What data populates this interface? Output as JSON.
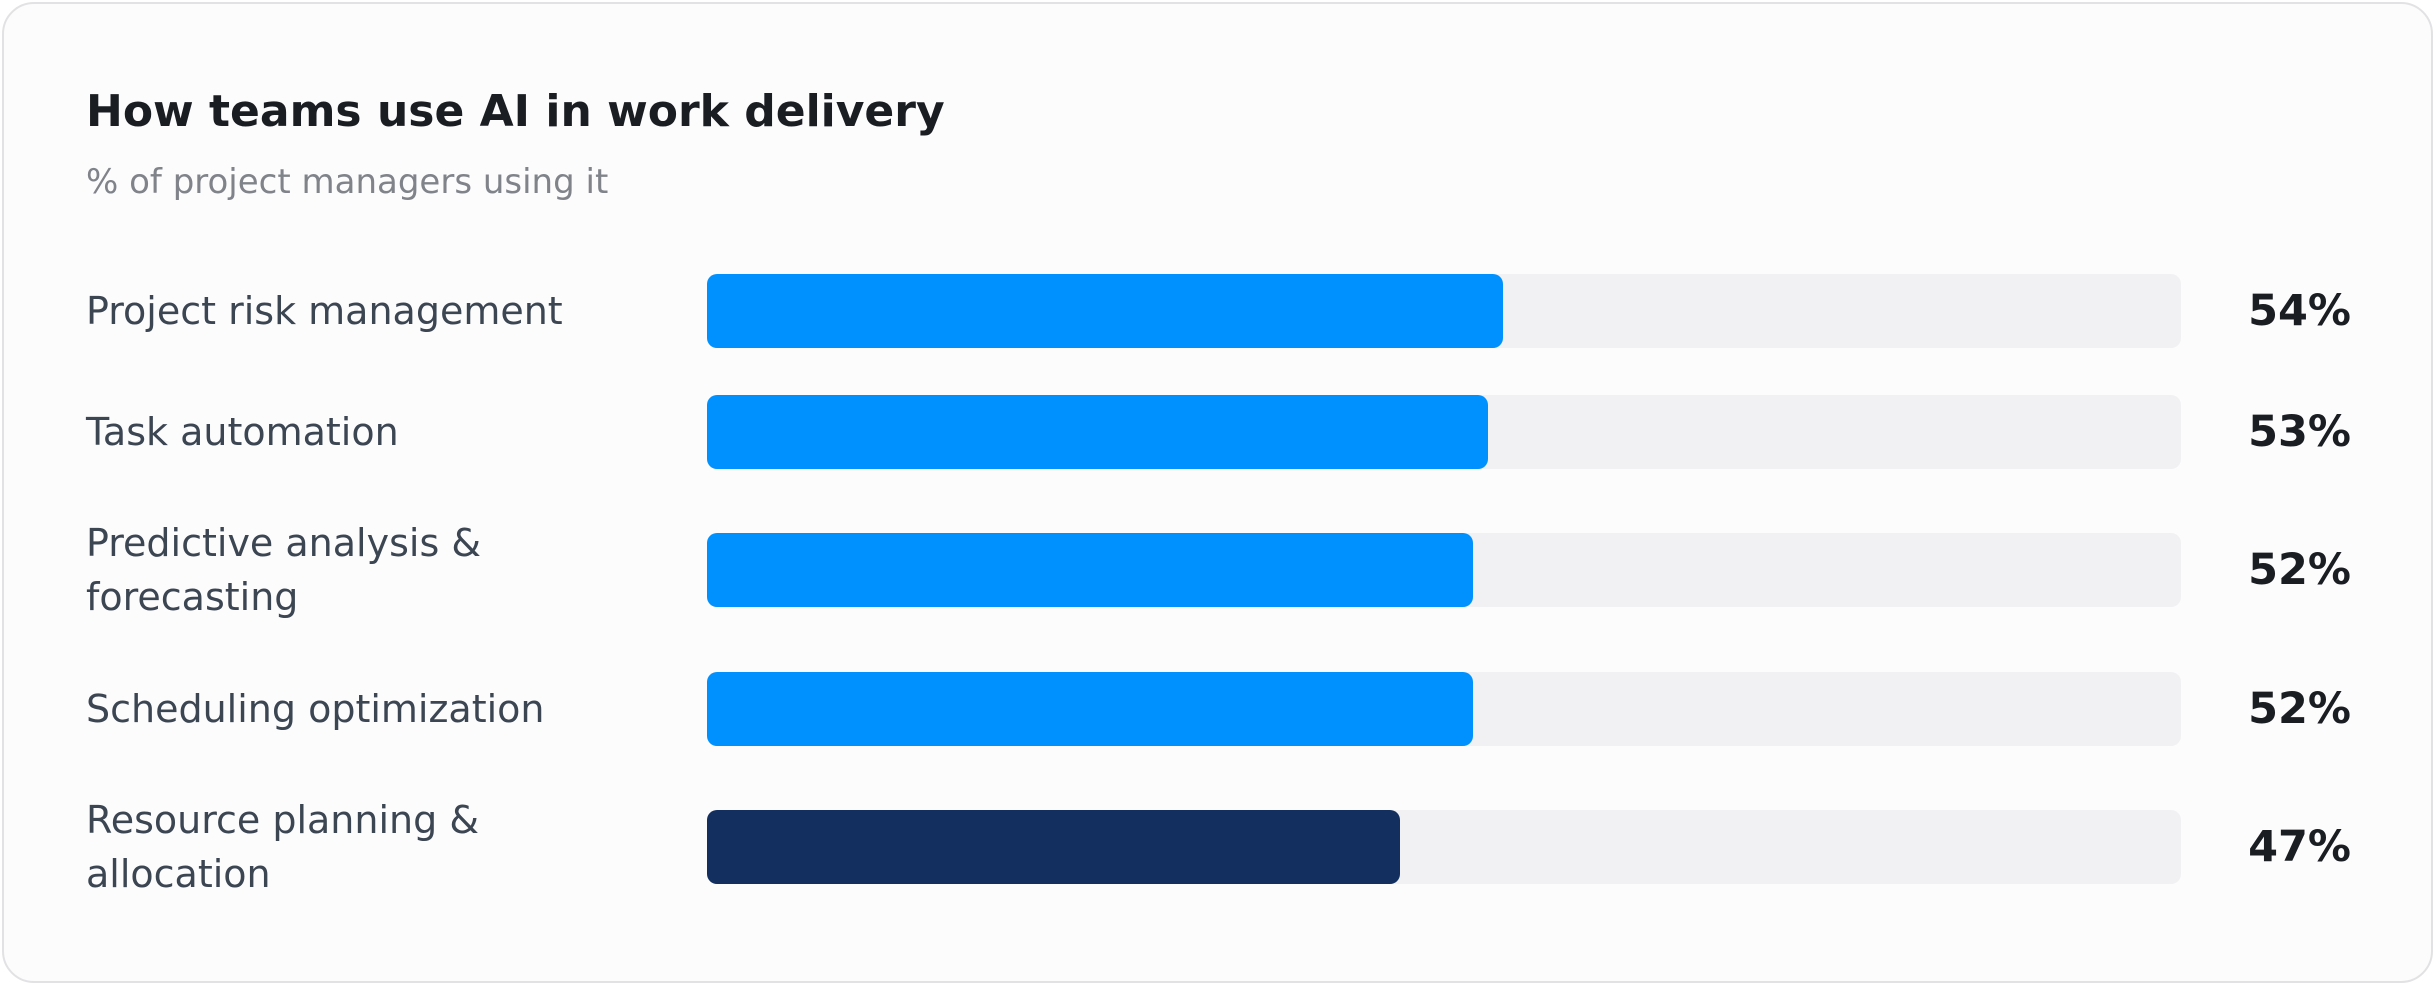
{
  "chart_data": {
    "type": "hbar",
    "title": "How teams use AI in work delivery",
    "subtitle": "% of project managers using it",
    "categories": [
      "Project risk management",
      "Task automation",
      "Predictive analysis & forecasting",
      "Scheduling optimization",
      "Resource planning & allocation"
    ],
    "values": [
      54,
      53,
      52,
      52,
      47
    ],
    "value_labels": [
      "54%",
      "53%",
      "52%",
      "52%",
      "47%"
    ],
    "colors": [
      "#0091ff",
      "#0091ff",
      "#0091ff",
      "#0091ff",
      "#122f5f"
    ],
    "track_color": "#f1f1f3",
    "xlim": [
      0,
      100
    ]
  }
}
